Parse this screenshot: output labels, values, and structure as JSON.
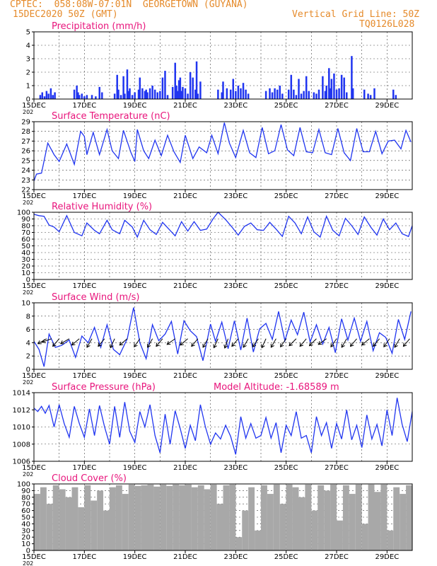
{
  "header": {
    "line1": "CPTEC:  058:08W-07:01N  GEORGETOWN (GUYANA)",
    "line2_left": "15DEC2020 50Z (GMT)",
    "line2_right": "Vertical Grid Line: 50Z",
    "line3_right": "TQ0126L028"
  },
  "colors": {
    "title": "#e8157c",
    "series": "#2035f0",
    "cloud": "#a8a8a8",
    "header": "#e58a2a"
  },
  "x_axis": {
    "tick_labels": [
      "15DEC",
      "17DEC",
      "19DEC",
      "21DEC",
      "23DEC",
      "25DEC",
      "27DEC",
      "29DEC"
    ],
    "tick_days": [
      15,
      17,
      19,
      21,
      23,
      25,
      27,
      29
    ],
    "minor_days": [
      16,
      18,
      20,
      22,
      24,
      26,
      28
    ],
    "range_days": [
      15,
      30
    ],
    "year_fragment": "202"
  },
  "chart_data": [
    {
      "type": "bar",
      "title": "Precipitation (mm/h)",
      "ylim": [
        0,
        5
      ],
      "yticks": [
        0,
        1,
        2,
        3,
        4,
        5
      ],
      "x": [
        15.25,
        15.33,
        15.42,
        15.5,
        15.58,
        15.67,
        15.75,
        15.83,
        16.6,
        16.7,
        16.75,
        16.8,
        16.9,
        17.0,
        17.1,
        17.3,
        17.45,
        17.6,
        17.7,
        18.2,
        18.3,
        18.35,
        18.45,
        18.55,
        18.6,
        18.7,
        18.75,
        18.8,
        18.9,
        19.0,
        19.15,
        19.2,
        19.3,
        19.4,
        19.45,
        19.5,
        19.6,
        19.7,
        19.8,
        19.9,
        20.0,
        20.1,
        20.2,
        20.3,
        20.5,
        20.6,
        20.65,
        20.7,
        20.75,
        20.8,
        20.85,
        20.9,
        21.0,
        21.1,
        21.2,
        21.3,
        21.4,
        21.45,
        21.5,
        21.6,
        22.3,
        22.45,
        22.5,
        22.65,
        22.8,
        22.9,
        23.0,
        23.1,
        23.2,
        23.3,
        23.4,
        23.5,
        24.2,
        24.35,
        24.45,
        24.55,
        24.65,
        24.75,
        24.85,
        25.1,
        25.2,
        25.3,
        25.4,
        25.5,
        25.6,
        25.7,
        25.8,
        25.9,
        26.1,
        26.2,
        26.3,
        26.45,
        26.55,
        26.6,
        26.7,
        26.75,
        26.8,
        26.9,
        27.0,
        27.1,
        27.2,
        27.3,
        27.4,
        27.6,
        27.65,
        28.1,
        28.25,
        28.35,
        28.5,
        29.25,
        29.35
      ],
      "values": [
        0.3,
        0.5,
        0.2,
        0.6,
        0.4,
        0.8,
        0.3,
        0.5,
        0.7,
        1.0,
        0.5,
        0.3,
        0.4,
        0.2,
        0.3,
        0.3,
        0.2,
        0.9,
        0.5,
        0.4,
        1.8,
        0.7,
        0.3,
        1.7,
        0.4,
        2.2,
        0.6,
        0.8,
        0.3,
        0.5,
        0.7,
        1.6,
        0.8,
        0.6,
        0.7,
        0.5,
        0.8,
        1.0,
        0.7,
        0.5,
        0.6,
        1.6,
        2.1,
        0.3,
        0.9,
        2.7,
        1.0,
        0.6,
        1.4,
        1.6,
        0.6,
        0.9,
        0.8,
        0.4,
        2.0,
        1.6,
        0.7,
        2.8,
        0.4,
        1.3,
        0.7,
        0.5,
        1.3,
        0.8,
        0.7,
        1.5,
        0.6,
        1.0,
        0.8,
        1.2,
        0.7,
        0.4,
        0.6,
        0.8,
        0.5,
        0.8,
        0.7,
        1.0,
        0.4,
        0.7,
        1.8,
        0.7,
        0.3,
        1.5,
        0.4,
        0.6,
        1.7,
        0.6,
        0.5,
        0.4,
        0.7,
        1.7,
        0.6,
        1.0,
        2.3,
        0.8,
        1.5,
        1.9,
        0.7,
        0.8,
        1.8,
        1.6,
        0.5,
        3.2,
        0.8,
        0.7,
        0.4,
        0.3,
        0.8,
        0.7,
        0.3
      ]
    },
    {
      "type": "line",
      "title": "Surface Temperature (nC)",
      "ylim": [
        22,
        29
      ],
      "yticks": [
        22,
        23,
        24,
        25,
        26,
        27,
        28,
        29
      ],
      "x": [
        15.0,
        15.1,
        15.3,
        15.55,
        15.8,
        16.0,
        16.3,
        16.6,
        16.85,
        17.0,
        17.1,
        17.35,
        17.6,
        17.9,
        18.1,
        18.35,
        18.55,
        18.85,
        19.0,
        19.1,
        19.35,
        19.55,
        19.8,
        20.05,
        20.3,
        20.55,
        20.8,
        21.0,
        21.3,
        21.55,
        21.85,
        22.05,
        22.3,
        22.55,
        22.75,
        23.0,
        23.3,
        23.55,
        23.8,
        24.05,
        24.3,
        24.55,
        24.8,
        25.05,
        25.3,
        25.55,
        25.8,
        26.05,
        26.3,
        26.55,
        26.8,
        27.05,
        27.3,
        27.55,
        27.8,
        28.05,
        28.3,
        28.55,
        28.8,
        29.05,
        29.3,
        29.55,
        29.75,
        29.95
      ],
      "values": [
        22.9,
        23.6,
        23.7,
        26.8,
        25.6,
        24.9,
        26.7,
        24.6,
        28.0,
        27.5,
        25.6,
        27.9,
        25.6,
        28.2,
        26.0,
        25.2,
        28.1,
        25.8,
        24.9,
        28.2,
        26.0,
        25.2,
        27.1,
        25.5,
        27.6,
        25.9,
        24.8,
        27.6,
        25.2,
        26.4,
        25.8,
        27.6,
        25.7,
        28.9,
        26.8,
        25.3,
        28.1,
        25.8,
        25.3,
        28.4,
        25.7,
        26.0,
        28.7,
        26.1,
        25.5,
        28.4,
        25.9,
        25.8,
        28.2,
        25.8,
        25.6,
        28.3,
        25.8,
        25.0,
        28.3,
        25.9,
        25.9,
        28.0,
        25.7,
        27.0,
        27.1,
        26.2,
        28.1,
        26.9
      ]
    },
    {
      "type": "line",
      "title": "Relative Humidity (%)",
      "ylim": [
        0,
        100
      ],
      "yticks": [
        0,
        10,
        20,
        30,
        40,
        50,
        60,
        70,
        80,
        90,
        100
      ],
      "x": [
        15.0,
        15.2,
        15.4,
        15.6,
        15.8,
        16.0,
        16.3,
        16.6,
        16.9,
        17.1,
        17.4,
        17.6,
        17.9,
        18.1,
        18.4,
        18.6,
        18.9,
        19.1,
        19.35,
        19.6,
        19.85,
        20.1,
        20.35,
        20.6,
        20.85,
        21.1,
        21.35,
        21.6,
        21.85,
        22.1,
        22.3,
        22.6,
        22.85,
        23.1,
        23.35,
        23.6,
        23.85,
        24.1,
        24.35,
        24.6,
        24.85,
        25.1,
        25.35,
        25.6,
        25.85,
        26.1,
        26.35,
        26.6,
        26.85,
        27.1,
        27.35,
        27.6,
        27.85,
        28.1,
        28.35,
        28.6,
        28.85,
        29.1,
        29.35,
        29.6,
        29.85,
        30.0
      ],
      "values": [
        97,
        95,
        94,
        81,
        78,
        71,
        95,
        70,
        65,
        84,
        73,
        68,
        88,
        74,
        68,
        88,
        78,
        63,
        88,
        74,
        67,
        85,
        75,
        65,
        86,
        72,
        86,
        73,
        75,
        90,
        100,
        89,
        78,
        66,
        79,
        84,
        74,
        73,
        85,
        75,
        64,
        94,
        84,
        68,
        93,
        71,
        63,
        94,
        73,
        65,
        91,
        80,
        67,
        93,
        78,
        66,
        90,
        74,
        84,
        68,
        64,
        80
      ]
    },
    {
      "type": "line",
      "title": "Surface Wind (m/s)",
      "ylim": [
        0,
        10
      ],
      "yticks": [
        0,
        2,
        4,
        6,
        8,
        10
      ],
      "x": [
        15.0,
        15.2,
        15.4,
        15.6,
        15.85,
        16.1,
        16.4,
        16.65,
        16.9,
        17.15,
        17.4,
        17.65,
        17.9,
        18.15,
        18.4,
        18.7,
        18.95,
        19.2,
        19.45,
        19.7,
        19.95,
        20.2,
        20.45,
        20.7,
        20.95,
        21.2,
        21.45,
        21.7,
        22.0,
        22.2,
        22.45,
        22.7,
        22.95,
        23.2,
        23.45,
        23.7,
        23.95,
        24.2,
        24.45,
        24.7,
        24.95,
        25.2,
        25.45,
        25.7,
        25.95,
        26.2,
        26.45,
        26.7,
        26.95,
        27.2,
        27.45,
        27.7,
        27.95,
        28.2,
        28.45,
        28.7,
        28.95,
        29.2,
        29.45,
        29.7,
        29.95
      ],
      "values": [
        4.2,
        3.0,
        0.4,
        5.3,
        3.3,
        3.6,
        4.4,
        1.8,
        5.0,
        4.0,
        6.3,
        3.3,
        6.7,
        3.0,
        2.2,
        4.6,
        9.3,
        4.0,
        1.6,
        6.7,
        4.3,
        5.3,
        7.2,
        2.3,
        7.3,
        5.8,
        4.9,
        1.3,
        6.8,
        4.2,
        7.1,
        3.1,
        7.3,
        2.9,
        7.7,
        2.6,
        6.1,
        6.9,
        4.5,
        8.7,
        4.3,
        7.4,
        5.2,
        8.6,
        4.1,
        6.7,
        3.8,
        6.3,
        2.5,
        7.6,
        4.4,
        7.7,
        4.2,
        7.2,
        2.8,
        5.5,
        4.8,
        2.4,
        7.5,
        4.5,
        8.7
      ],
      "arrows": {
        "x": [
          15.5,
          15.7,
          16.0,
          16.4,
          16.8,
          17.3,
          17.8,
          18.2,
          18.7,
          19.2,
          19.7,
          20.1,
          20.6,
          21.1,
          21.5,
          21.9,
          22.3,
          22.7,
          23.1,
          23.5,
          23.9,
          24.2,
          24.6,
          25.0,
          25.4,
          25.8,
          26.2,
          26.6,
          27.0,
          27.4,
          27.8,
          28.3,
          28.7,
          29.1,
          29.5,
          29.9
        ],
        "dir_deg": [
          210,
          200,
          230,
          210,
          220,
          240,
          230,
          245,
          220,
          235,
          240,
          230,
          215,
          220,
          230,
          240,
          245,
          250,
          230,
          240,
          235,
          245,
          240,
          235,
          225,
          230,
          225,
          215,
          235,
          240,
          230,
          220,
          230,
          235,
          240,
          230
        ]
      }
    },
    {
      "type": "line",
      "title": "Surface Pressure (hPa)",
      "annotation": "Model Altitude: -1.68589 m",
      "ylim": [
        1006,
        1014
      ],
      "yticks": [
        1006,
        1008,
        1010,
        1012,
        1014
      ],
      "x": [
        15.0,
        15.15,
        15.3,
        15.45,
        15.6,
        15.8,
        16.0,
        16.2,
        16.4,
        16.6,
        16.8,
        17.0,
        17.2,
        17.4,
        17.6,
        17.8,
        18.0,
        18.2,
        18.4,
        18.6,
        18.8,
        19.0,
        19.2,
        19.4,
        19.6,
        19.8,
        20.0,
        20.2,
        20.4,
        20.6,
        20.8,
        21.0,
        21.2,
        21.4,
        21.6,
        21.8,
        22.0,
        22.2,
        22.4,
        22.6,
        22.8,
        23.0,
        23.2,
        23.4,
        23.6,
        23.8,
        24.0,
        24.2,
        24.4,
        24.6,
        24.8,
        25.0,
        25.2,
        25.4,
        25.6,
        25.8,
        26.0,
        26.2,
        26.4,
        26.6,
        26.8,
        27.0,
        27.2,
        27.4,
        27.6,
        27.8,
        28.0,
        28.2,
        28.4,
        28.6,
        28.8,
        29.0,
        29.2,
        29.4,
        29.6,
        29.8,
        30.0
      ],
      "values": [
        1012.2,
        1011.8,
        1012.4,
        1011.6,
        1012.5,
        1010.0,
        1012.6,
        1010.4,
        1008.8,
        1012.4,
        1010.4,
        1008.8,
        1012.1,
        1009.0,
        1012.5,
        1010.0,
        1008.0,
        1012.4,
        1008.8,
        1012.9,
        1009.5,
        1008.2,
        1011.8,
        1010.0,
        1012.6,
        1009.0,
        1007.0,
        1011.5,
        1008.0,
        1011.9,
        1009.8,
        1007.5,
        1010.2,
        1008.4,
        1012.6,
        1010.0,
        1008.0,
        1009.3,
        1008.6,
        1010.2,
        1008.9,
        1006.8,
        1011.2,
        1008.7,
        1010.4,
        1008.7,
        1009.0,
        1011.1,
        1008.7,
        1010.5,
        1007.0,
        1010.2,
        1009.0,
        1011.8,
        1008.7,
        1009.0,
        1007.0,
        1011.2,
        1009.0,
        1010.5,
        1007.5,
        1010.4,
        1008.6,
        1012.0,
        1008.5,
        1010.2,
        1007.6,
        1011.4,
        1008.6,
        1010.3,
        1007.8,
        1012.0,
        1009.0,
        1013.4,
        1010.3,
        1008.3,
        1011.8
      ]
    },
    {
      "type": "bar",
      "title": "Cloud Cover (%)",
      "ylim": [
        0,
        100
      ],
      "yticks": [
        0,
        10,
        20,
        30,
        40,
        50,
        60,
        70,
        80,
        90,
        100
      ],
      "x": [
        15.0,
        15.25,
        15.5,
        15.75,
        16.0,
        16.25,
        16.5,
        16.75,
        17.0,
        17.25,
        17.5,
        17.75,
        18.0,
        18.25,
        18.5,
        18.75,
        19.0,
        19.25,
        19.5,
        19.75,
        20.0,
        20.25,
        20.5,
        20.75,
        21.0,
        21.25,
        21.5,
        21.75,
        22.0,
        22.25,
        22.5,
        22.75,
        23.0,
        23.25,
        23.5,
        23.75,
        24.0,
        24.25,
        24.5,
        24.75,
        25.0,
        25.25,
        25.5,
        25.75,
        26.0,
        26.25,
        26.5,
        26.75,
        27.0,
        27.25,
        27.5,
        27.75,
        28.0,
        28.25,
        28.5,
        28.75,
        29.0,
        29.25,
        29.5,
        29.75
      ],
      "values": [
        85,
        95,
        70,
        98,
        92,
        80,
        95,
        65,
        98,
        75,
        90,
        60,
        95,
        98,
        85,
        99,
        97,
        98,
        99,
        96,
        99,
        97,
        99,
        98,
        99,
        95,
        98,
        92,
        99,
        70,
        98,
        99,
        20,
        60,
        95,
        30,
        98,
        85,
        99,
        70,
        99,
        95,
        80,
        99,
        60,
        98,
        90,
        99,
        45,
        98,
        85,
        99,
        40,
        99,
        88,
        99,
        30,
        95,
        85,
        98
      ]
    }
  ]
}
